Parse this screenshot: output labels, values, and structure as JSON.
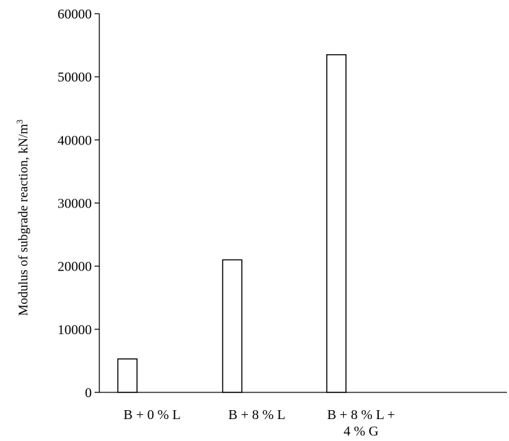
{
  "chart_data": {
    "type": "bar",
    "categories": [
      [
        "B + 0 % L"
      ],
      [
        "B + 8 % L"
      ],
      [
        "B + 8 % L +",
        "4 % G"
      ]
    ],
    "values": [
      5300,
      21000,
      53500
    ],
    "ylabel": "Modulus of subgrade reaction, kN/m",
    "ylabel_superscript": "3",
    "ylim": [
      0,
      60000
    ],
    "yticks": [
      "0",
      "10000",
      "20000",
      "30000",
      "40000",
      "50000",
      "60000"
    ],
    "grid": false,
    "legend": "none",
    "colors": {
      "bar_fill": "#ffffff",
      "bar_stroke": "#000000",
      "axis": "#000000"
    }
  }
}
